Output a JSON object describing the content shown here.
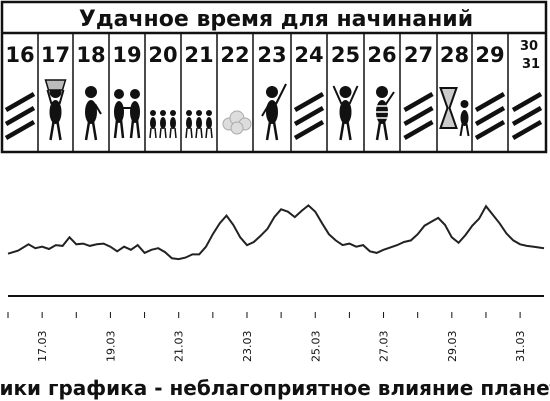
{
  "header": {
    "title": "Удачное время для начинаний"
  },
  "calendar": {
    "days": [
      {
        "label": "16",
        "icon": "hatch-icon"
      },
      {
        "label": "17",
        "icon": "trophy-figure-icon"
      },
      {
        "label": "18",
        "icon": "walking-figure-icon"
      },
      {
        "label": "19",
        "icon": "handshake-figures-icon"
      },
      {
        "label": "20",
        "icon": "small-figures-icon"
      },
      {
        "label": "21",
        "icon": "small-figures-icon"
      },
      {
        "label": "22",
        "icon": "cloud-icon"
      },
      {
        "label": "23",
        "icon": "pointing-figure-icon"
      },
      {
        "label": "24",
        "icon": "hatch-icon"
      },
      {
        "label": "25",
        "icon": "cheering-figure-icon"
      },
      {
        "label": "26",
        "icon": "striped-figure-icon"
      },
      {
        "label": "27",
        "icon": "hatch-icon"
      },
      {
        "label": "28",
        "icon": "hourglass-figure-icon"
      },
      {
        "label": "29",
        "icon": "hatch-icon"
      },
      {
        "label": "30",
        "label2": "31",
        "icon": "hatch-icon"
      }
    ]
  },
  "chart_data": {
    "type": "line",
    "title": "",
    "xlabel": "",
    "ylabel": "",
    "x_ticks": [
      "17.03",
      "19.03",
      "21.03",
      "23.03",
      "25.03",
      "27.03",
      "29.03",
      "31.03"
    ],
    "x": [
      16.0,
      16.3,
      16.6,
      16.8,
      17.0,
      17.2,
      17.4,
      17.6,
      17.8,
      18.0,
      18.2,
      18.4,
      18.6,
      18.8,
      19.0,
      19.2,
      19.4,
      19.6,
      19.8,
      20.0,
      20.2,
      20.4,
      20.6,
      20.8,
      21.0,
      21.2,
      21.4,
      21.6,
      21.8,
      22.0,
      22.2,
      22.4,
      22.6,
      22.8,
      23.0,
      23.2,
      23.4,
      23.6,
      23.8,
      24.0,
      24.2,
      24.4,
      24.6,
      24.8,
      25.0,
      25.2,
      25.4,
      25.6,
      25.8,
      26.0,
      26.2,
      26.4,
      26.6,
      26.8,
      27.0,
      27.2,
      27.4,
      27.6,
      27.8,
      28.0,
      28.2,
      28.4,
      28.6,
      28.8,
      29.0,
      29.2,
      29.4,
      29.6,
      29.8,
      30.0,
      30.2,
      30.4,
      30.6,
      30.8,
      31.0,
      31.2,
      31.4,
      31.7
    ],
    "series": [
      {
        "values": [
          2.1,
          2.5,
          3.3,
          2.8,
          3.0,
          2.7,
          3.2,
          3.1,
          4.2,
          3.3,
          3.4,
          3.1,
          3.3,
          3.4,
          3.0,
          2.4,
          3.0,
          2.6,
          3.2,
          2.2,
          2.6,
          2.8,
          2.3,
          1.5,
          1.4,
          1.6,
          2.0,
          2.0,
          3.0,
          4.6,
          6.0,
          7.0,
          5.8,
          4.2,
          3.2,
          3.6,
          4.4,
          5.3,
          6.8,
          7.8,
          7.5,
          6.8,
          7.6,
          8.3,
          7.5,
          6.0,
          4.6,
          3.8,
          3.2,
          3.4,
          3.0,
          3.2,
          2.4,
          2.2,
          2.6,
          2.9,
          3.2,
          3.6,
          3.8,
          4.6,
          5.7,
          6.2,
          6.7,
          5.8,
          4.2,
          3.5,
          4.5,
          5.7,
          6.6,
          8.2,
          7.1,
          6.0,
          4.7,
          3.8,
          3.3,
          3.1,
          3.0,
          2.8
        ]
      }
    ],
    "xlim": [
      16.0,
      31.7
    ],
    "ylim": [
      0,
      9
    ],
    "grid": false,
    "legend": "none"
  },
  "footer": {
    "caption": "Пики графика - неблагоприятное влияние планет"
  }
}
